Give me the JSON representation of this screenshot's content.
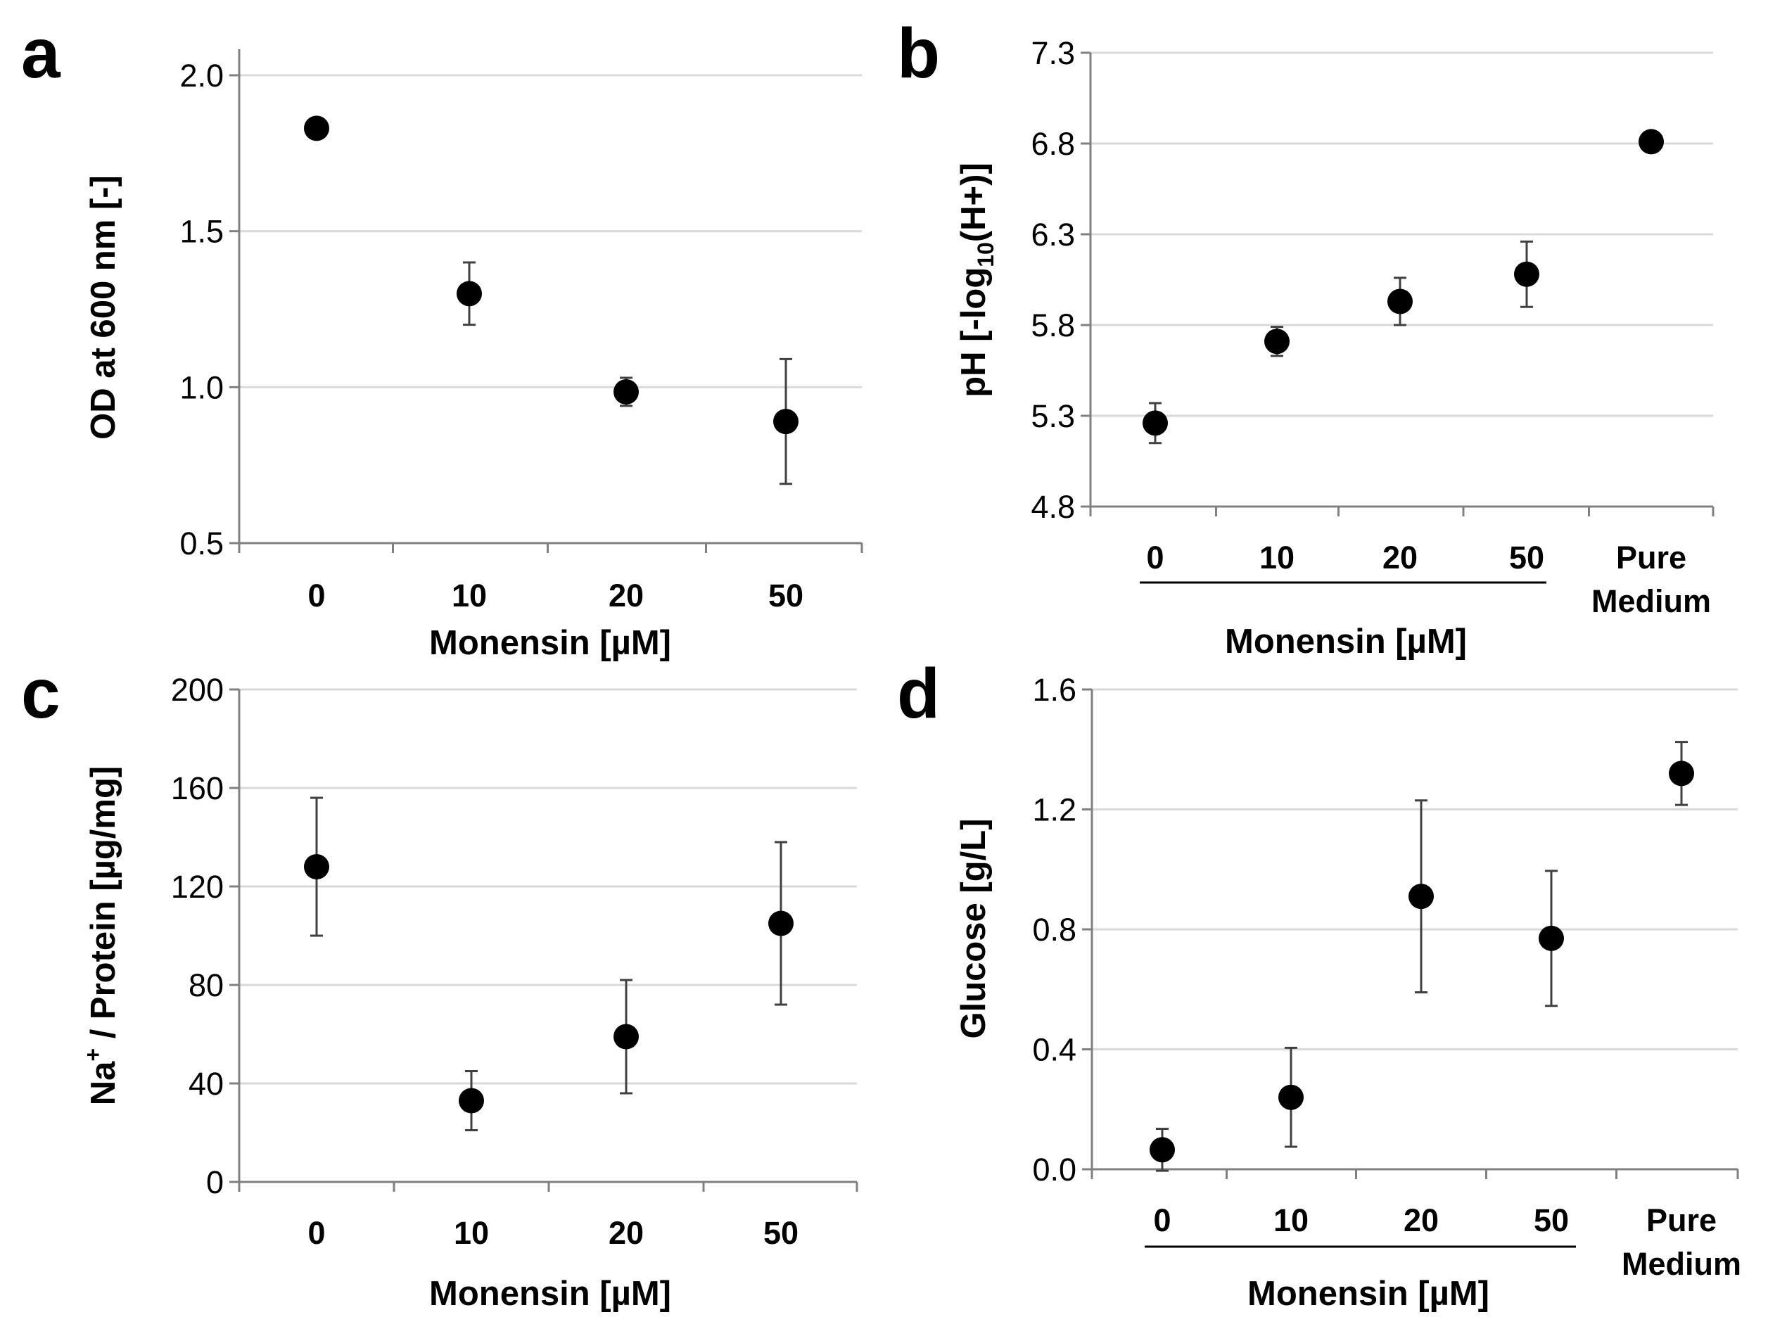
{
  "figure": {
    "chart_data": [
      {
        "panel": "a",
        "type": "scatter",
        "xlabel": "Monensin [µM]",
        "ylabel": "OD at 600 nm [-]",
        "categories": [
          "0",
          "10",
          "20",
          "50"
        ],
        "values": [
          1.83,
          1.3,
          0.985,
          0.89
        ],
        "errors": [
          0.0,
          0.1,
          0.045,
          0.2
        ],
        "ylim": [
          0.5,
          2.0
        ],
        "yticks": [
          0.5,
          1.0,
          1.5,
          2.0
        ],
        "ytick_labels": [
          "0.5",
          "1.0",
          "1.5",
          "2.0"
        ],
        "grid": true
      },
      {
        "panel": "b",
        "type": "scatter",
        "xlabel": "Monensin [µM]",
        "ylabel": "pH [-log10(H+)]",
        "categories": [
          "0",
          "10",
          "20",
          "50",
          "Pure Medium"
        ],
        "category_lines": [
          [
            "0"
          ],
          [
            "10"
          ],
          [
            "20"
          ],
          [
            "50"
          ],
          [
            "Pure",
            "Medium"
          ]
        ],
        "values": [
          5.26,
          5.71,
          5.93,
          6.08,
          6.81
        ],
        "errors": [
          0.11,
          0.08,
          0.13,
          0.18,
          0.0
        ],
        "ylim": [
          4.8,
          7.3
        ],
        "yticks": [
          4.8,
          5.3,
          5.8,
          6.3,
          6.8,
          7.3
        ],
        "ytick_labels": [
          "4.8",
          "5.3",
          "5.8",
          "6.3",
          "6.8",
          "7.3"
        ],
        "grid": true
      },
      {
        "panel": "c",
        "type": "scatter",
        "xlabel": "Monensin [µM]",
        "ylabel": "Na+ / Protein [µg/mg]",
        "categories": [
          "0",
          "10",
          "20",
          "50"
        ],
        "values": [
          128,
          33,
          59,
          105
        ],
        "errors": [
          28,
          12,
          23,
          33
        ],
        "ylim": [
          0,
          200
        ],
        "yticks": [
          0,
          40,
          80,
          120,
          160,
          200
        ],
        "ytick_labels": [
          "0",
          "40",
          "80",
          "120",
          "160",
          "200"
        ],
        "grid": true
      },
      {
        "panel": "d",
        "type": "scatter",
        "xlabel": "Monensin [µM]",
        "ylabel": "Glucose [g/L]",
        "categories": [
          "0",
          "10",
          "20",
          "50",
          "Pure Medium"
        ],
        "category_lines": [
          [
            "0"
          ],
          [
            "10"
          ],
          [
            "20"
          ],
          [
            "50"
          ],
          [
            "Pure",
            "Medium"
          ]
        ],
        "values": [
          0.065,
          0.24,
          0.91,
          0.77,
          1.32
        ],
        "errors": [
          0.07,
          0.165,
          0.32,
          0.225,
          0.105
        ],
        "ylim": [
          0.0,
          1.6
        ],
        "yticks": [
          0.0,
          0.4,
          0.8,
          1.2,
          1.6
        ],
        "ytick_labels": [
          "0.0",
          "0.4",
          "0.8",
          "1.2",
          "1.6"
        ],
        "grid": true
      }
    ]
  }
}
